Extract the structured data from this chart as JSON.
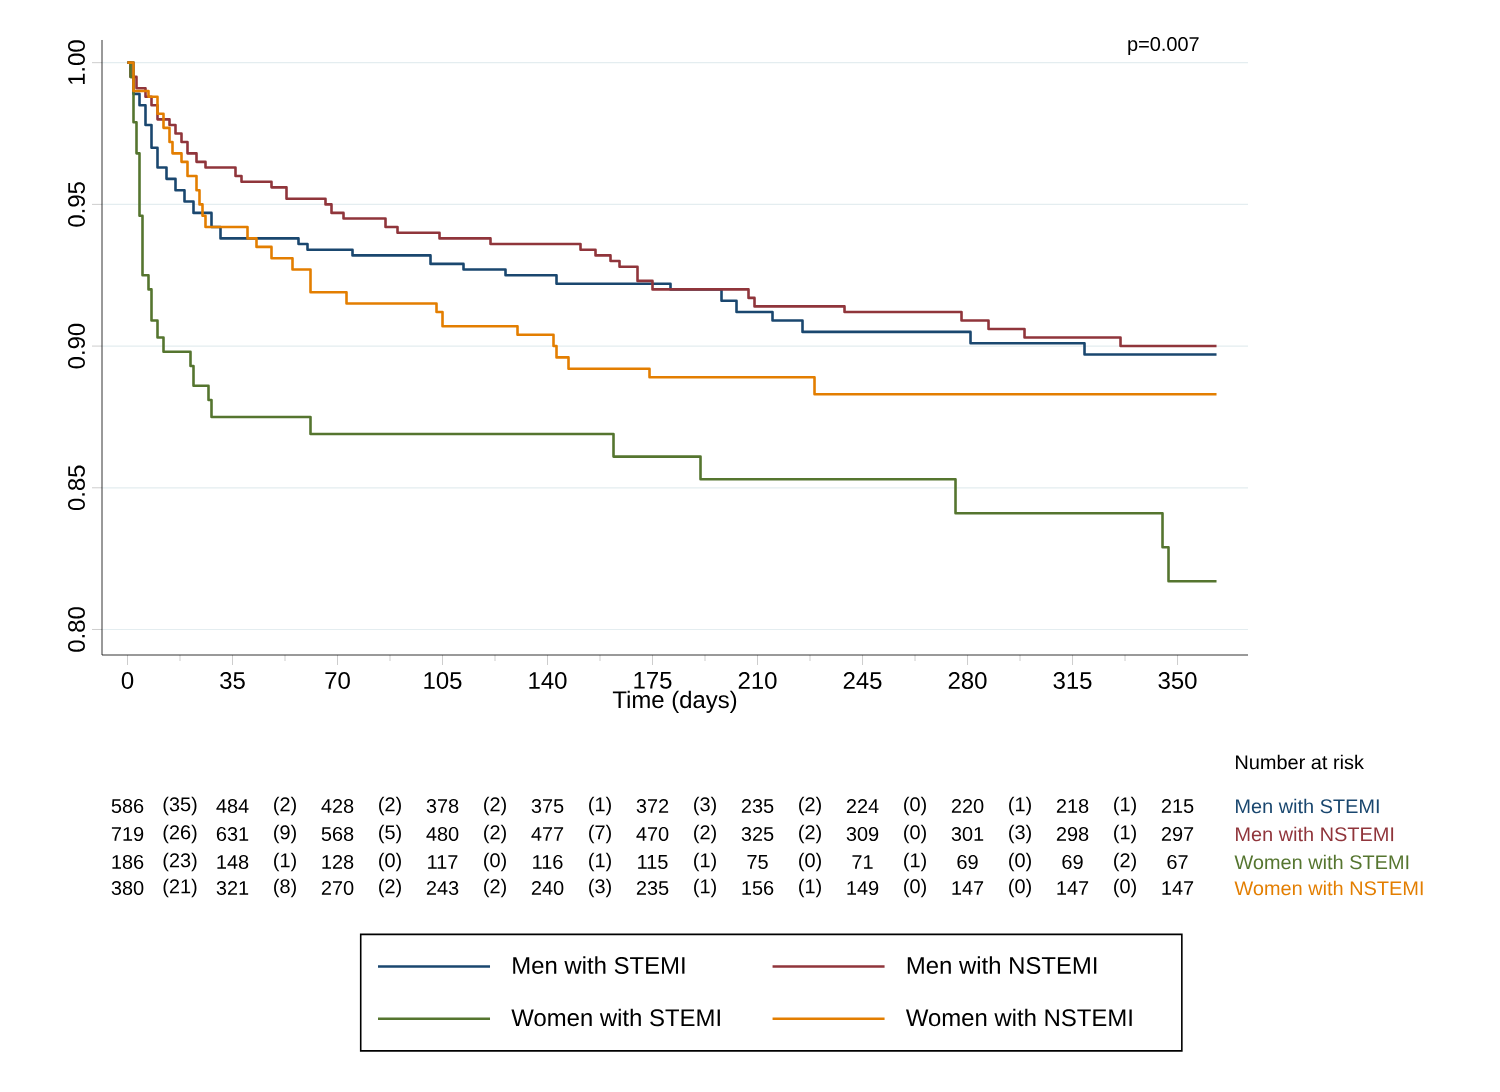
{
  "chart_data": {
    "type": "step",
    "xlabel": "Time (days)",
    "xlim": [
      -8.5,
      373.5
    ],
    "ylim": [
      0.791,
      1.008
    ],
    "xticks": [
      0,
      {
        "value": 17.5,
        "label": null
      },
      35,
      {
        "value": 52.5,
        "label": null
      },
      70,
      {
        "value": 87.5,
        "label": null
      },
      105,
      {
        "value": 122.5,
        "label": null
      },
      140,
      {
        "value": 157.5,
        "label": null
      },
      175,
      {
        "value": 192.5,
        "label": null
      },
      210,
      {
        "value": 227.5,
        "label": null
      },
      245,
      {
        "value": 262.5,
        "label": null
      },
      280,
      {
        "value": 297.5,
        "label": null
      },
      315,
      {
        "value": 332.5,
        "label": null
      },
      350
    ],
    "yticks": [
      {
        "value": 0.8,
        "label": "0.80"
      },
      {
        "value": 0.85,
        "label": "0.85"
      },
      {
        "value": 0.9,
        "label": "0.90"
      },
      {
        "value": 0.95,
        "label": "0.95"
      },
      {
        "value": 1.0,
        "label": "1.00"
      }
    ],
    "grid": "y",
    "legend": "bottom",
    "series": [
      {
        "name": "Men with STEMI",
        "color": "#1a476f",
        "x": [
          0,
          2,
          4,
          6,
          8,
          10,
          13,
          16,
          19,
          22,
          28,
          31,
          57,
          60,
          75,
          101,
          112,
          126,
          143,
          181,
          198,
          203,
          215,
          225,
          281,
          319,
          363
        ],
        "values": [
          1.0,
          0.989,
          0.985,
          0.978,
          0.97,
          0.963,
          0.959,
          0.955,
          0.951,
          0.947,
          0.942,
          0.938,
          0.936,
          0.934,
          0.932,
          0.929,
          0.927,
          0.925,
          0.922,
          0.92,
          0.916,
          0.912,
          0.909,
          0.905,
          0.901,
          0.897,
          0.897
        ]
      },
      {
        "name": "Men with NSTEMI",
        "color": "#90353b",
        "x": [
          0,
          1,
          3,
          6,
          8,
          10,
          14,
          16,
          18,
          20,
          23,
          26,
          36,
          38,
          48,
          53,
          66,
          68,
          72,
          86,
          90,
          104,
          121,
          151,
          156,
          161,
          164,
          170,
          175,
          207,
          209,
          239,
          278,
          287,
          299,
          331,
          363
        ],
        "values": [
          1.0,
          0.995,
          0.991,
          0.988,
          0.985,
          0.98,
          0.978,
          0.975,
          0.972,
          0.968,
          0.965,
          0.963,
          0.96,
          0.958,
          0.956,
          0.952,
          0.95,
          0.947,
          0.945,
          0.942,
          0.94,
          0.938,
          0.936,
          0.934,
          0.932,
          0.93,
          0.928,
          0.923,
          0.92,
          0.917,
          0.914,
          0.912,
          0.909,
          0.906,
          0.903,
          0.9,
          0.9
        ]
      },
      {
        "name": "Women with STEMI",
        "color": "#55752f",
        "x": [
          0,
          1,
          2,
          3,
          4,
          5,
          7,
          8,
          10,
          12,
          21,
          22,
          27,
          28,
          61,
          162,
          191,
          276,
          345,
          347,
          363
        ],
        "values": [
          1.0,
          0.995,
          0.979,
          0.968,
          0.946,
          0.925,
          0.92,
          0.909,
          0.903,
          0.898,
          0.893,
          0.886,
          0.881,
          0.875,
          0.869,
          0.861,
          0.853,
          0.841,
          0.829,
          0.817,
          0.817
        ]
      },
      {
        "name": "Women with NSTEMI",
        "color": "#e37e00",
        "x": [
          0,
          2,
          7,
          10,
          12,
          14,
          15,
          18,
          20,
          23,
          24,
          25,
          26,
          40,
          43,
          48,
          55,
          61,
          73,
          103,
          105,
          130,
          142,
          143,
          147,
          174,
          229,
          363
        ],
        "values": [
          1.0,
          0.99,
          0.988,
          0.982,
          0.977,
          0.972,
          0.968,
          0.965,
          0.96,
          0.955,
          0.95,
          0.946,
          0.942,
          0.938,
          0.935,
          0.931,
          0.927,
          0.919,
          0.915,
          0.912,
          0.907,
          0.904,
          0.9,
          0.896,
          0.892,
          0.889,
          0.883,
          0.883
        ]
      }
    ],
    "annotations": [
      "p=0.007",
      "Number at risk",
      "586",
      "(35)",
      "484",
      "(2)",
      "428",
      "(2)",
      "378",
      "(2)",
      "375",
      "(1)",
      "372",
      "(3)",
      "235",
      "(2)",
      "224",
      "(0)",
      "220",
      "(1)",
      "218",
      "(1)",
      "215",
      "719",
      "(26)",
      "631",
      "(9)",
      "568",
      "(5)",
      "480",
      "(2)",
      "477",
      "(7)",
      "470",
      "(2)",
      "325",
      "(2)",
      "309",
      "(0)",
      "301",
      "(3)",
      "298",
      "(1)",
      "297",
      "186",
      "(23)",
      "148",
      "(1)",
      "128",
      "(0)",
      "117",
      "(0)",
      "116",
      "(1)",
      "115",
      "(1)",
      "75",
      "(0)",
      "71",
      "(1)",
      "69",
      "(0)",
      "69",
      "(2)",
      "67",
      "380",
      "(21)",
      "321",
      "(8)",
      "270",
      "(2)",
      "243",
      "(2)",
      "240",
      "(3)",
      "235",
      "(1)",
      "156",
      "(1)",
      "149",
      "(0)",
      "147",
      "(0)",
      "147",
      "(0)",
      "147"
    ]
  }
}
